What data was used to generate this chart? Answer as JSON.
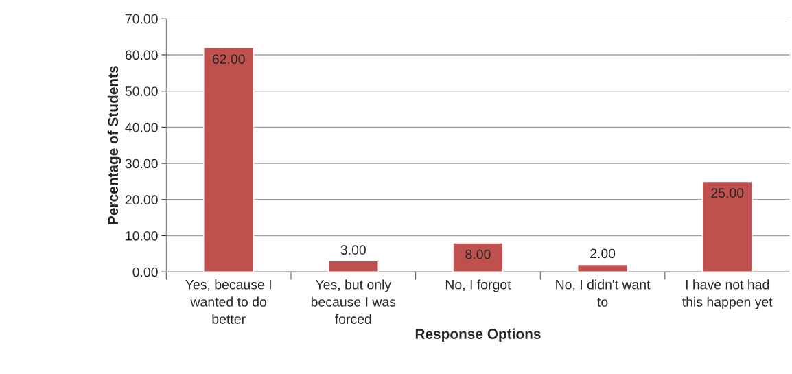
{
  "chart_data": {
    "type": "bar",
    "xlabel": "Response Options",
    "ylabel": "Percentage of Students",
    "categories": [
      "Yes, because I\nwanted to do\nbetter",
      "Yes, but only\nbecause I was\nforced",
      "No, I forgot",
      "No, I didn't want\nto",
      "I have not had\nthis happen yet"
    ],
    "values": [
      62,
      3,
      8,
      2,
      25
    ],
    "value_labels": [
      "62.00",
      "3.00",
      "8.00",
      "2.00",
      "25.00"
    ],
    "color": "#c0504d",
    "ylim": [
      0,
      70
    ],
    "yticks": [
      {
        "value": 0,
        "label": "0.00"
      },
      {
        "value": 10,
        "label": "10.00"
      },
      {
        "value": 20,
        "label": "20.00"
      },
      {
        "value": 30,
        "label": "30.00"
      },
      {
        "value": 40,
        "label": "40.00"
      },
      {
        "value": 50,
        "label": "50.00"
      },
      {
        "value": 60,
        "label": "60.00"
      },
      {
        "value": 70,
        "label": "70.00"
      }
    ],
    "grid": "y"
  }
}
